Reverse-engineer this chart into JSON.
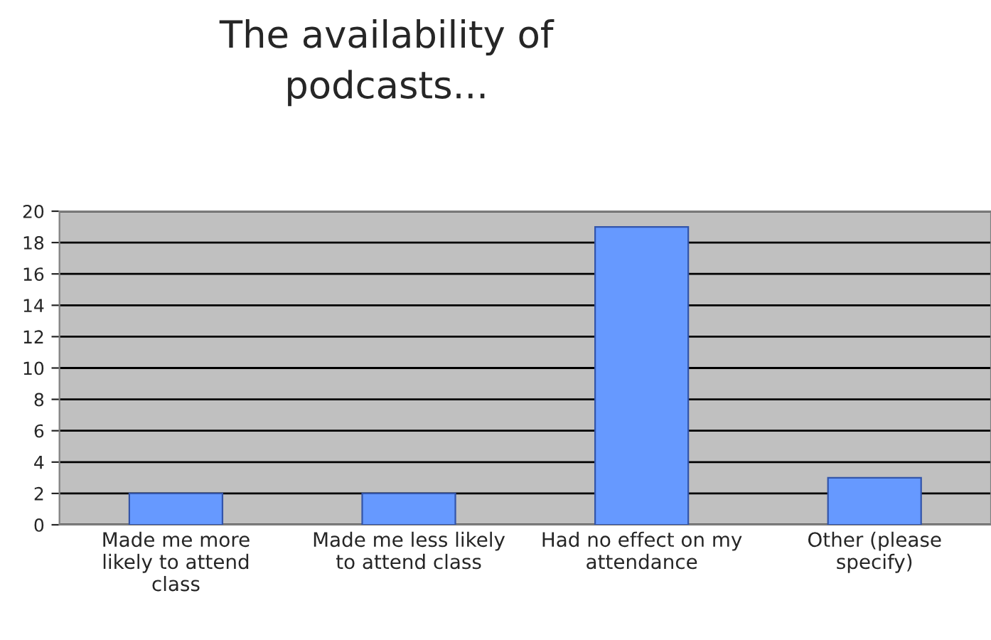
{
  "chart_data": {
    "type": "bar",
    "title": "The availability of\npodcasts...",
    "categories": [
      "Made me more\nlikely to attend\nclass",
      "Made me less likely\nto attend class",
      "Had no effect on my\nattendance",
      "Other (please\nspecify)"
    ],
    "values": [
      2,
      2,
      19,
      3
    ],
    "color": "#6699ff",
    "ylim": [
      0,
      20
    ],
    "yticks": [
      0,
      2,
      4,
      6,
      8,
      10,
      12,
      14,
      16,
      18,
      20
    ],
    "grid": "y"
  }
}
